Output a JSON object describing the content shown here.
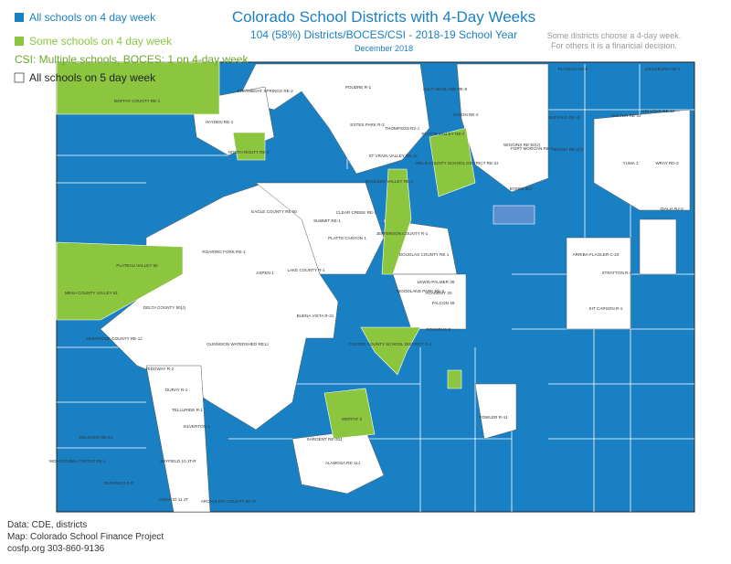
{
  "title": "Colorado School Districts with 4-Day Weeks",
  "subtitle": "104 (58%) Districts/BOCES/CSI - 2018-19 School Year",
  "date": "December 2018",
  "note": [
    "Some districts choose a 4-day week.",
    "For others it is a financial decision."
  ],
  "legend": [
    {
      "name": "All schools on 4 day week",
      "color": "#1a80c4",
      "text_color": "#1a80c4"
    },
    {
      "name": "Some schools on 4 day week",
      "color": "#8cc63f",
      "text_color": "#8cc63f"
    },
    {
      "name": "CSI: Multiple schools, BOCES: 1 on 4-day week",
      "text_color": "#6aa82a"
    },
    {
      "name": "All schools on 5 day week",
      "color": "#ffffff",
      "text_color": "#222222"
    }
  ],
  "districts": [
    "MOFFAT COUNTY RE-1",
    "STEAMBOAT SPRINGS RE-2",
    "HAYDEN RE-1",
    "NORTH ROUTT RE-3",
    "POUDRE R-1",
    "AULT-HIGHLAND RE-9",
    "PLATEAU RE-5",
    "JULESBURG RE-1",
    "ESTES PARK R-3",
    "THOMPSON R2-J",
    "EATON RE-2",
    "PLATTE VALLEY RE-7",
    "WIGGINS RE-50(J)",
    "FORT MORGAN RE-3",
    "BRUSH RE-2(J)",
    "BUFFALO RE-4J",
    "YUMA 1",
    "WRAY RD-2",
    "HOLYOKE RE-1J",
    "HAXTUN RE-2J",
    "ST VRAIN VALLEY RE 1J",
    "BOULDER VALLEY RE 2",
    "WELD COUNTY SCHOOL DISTRICT RE-3J",
    "BYERS 32J",
    "IDALIA RJ-3",
    "EAGLE COUNTY RE 50",
    "SUMMIT RE-1",
    "CLEAR CREEK RE-1",
    "PLATTE CANYON 1",
    "JEFFERSON COUNTY R-1",
    "DOUGLAS COUNTY RE 1",
    "ROARING FORK RE-1",
    "ASPEN 1",
    "LAKE COUNTY R-1",
    "PLATEAU VALLEY 50",
    "MESA COUNTY VALLEY 51",
    "DELTA COUNTY 50(J)",
    "BUENA VISTA R-31",
    "ARRIBA-FLAGLER C-20",
    "KIT CARSON R-1",
    "WOODLAND PARK RE-2",
    "LEWIS-PALMER 38",
    "ACADEMY 20",
    "FALCON 49",
    "FOUNTAIN 8",
    "MONTROSE COUNTY RE-1J",
    "GUNNISON WATERSHED RE1J",
    "CUSTER COUNTY SCHOOL DISTRICT C-1",
    "RIDGWAY R-2",
    "OURAY R-1",
    "TELLURIDE R-1",
    "SILVERTON 1",
    "MOFFAT 2",
    "SARGENT RE-33J",
    "DOLORES RE-4A",
    "BAYFIELD 10 JT-R",
    "MONTEZUMA-CORTEZ RE-1",
    "DURANGO 9-R",
    "IGNACIO 11 JT",
    "ARCHULETA COUNTY 50 JT",
    "ALAMOSA RE-11J",
    "FOWLER R-4J",
    "STRATTON R-4"
  ],
  "source": [
    "Data: CDE, districts",
    "Map: Colorado School Finance Project",
    "cosfp.org   303-860-9136"
  ]
}
